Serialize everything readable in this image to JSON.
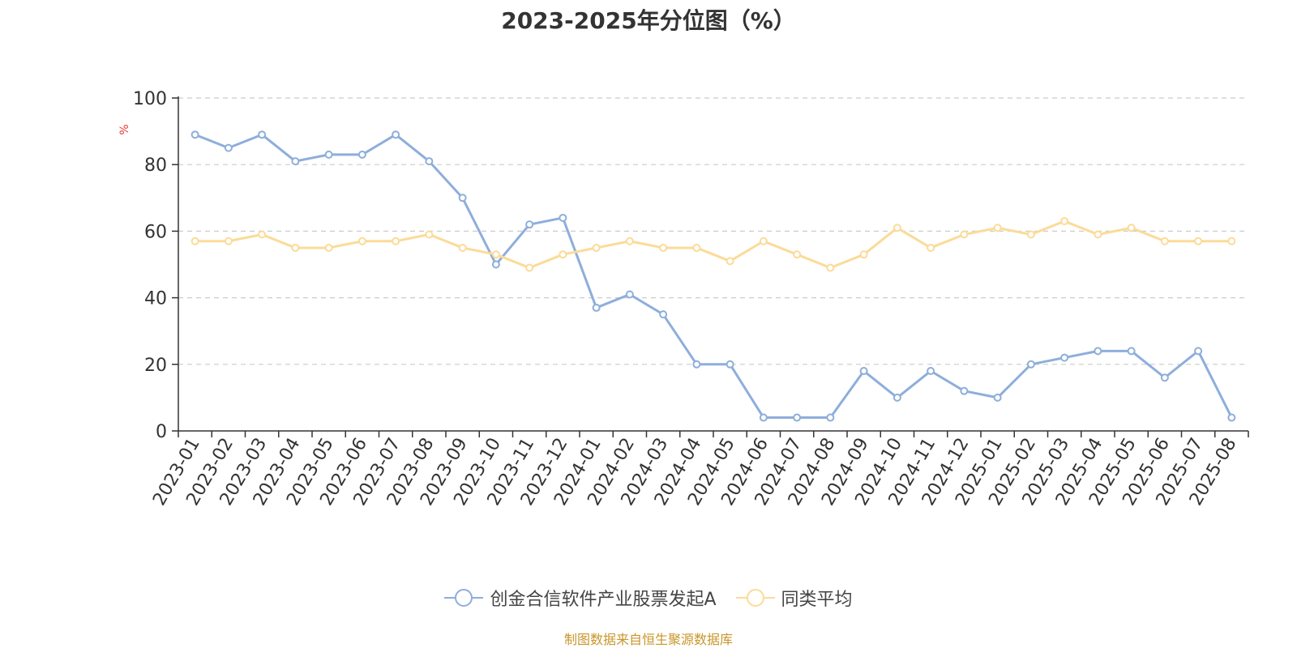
{
  "chart_data": {
    "type": "line",
    "title": "2023-2025年分位图（%）",
    "ylabel": "%",
    "xlabel": "",
    "ylim": [
      0,
      100
    ],
    "yticks": [
      0,
      20,
      40,
      60,
      80,
      100
    ],
    "grid": true,
    "legend_position": "bottom",
    "categories": [
      "2023-01",
      "2023-02",
      "2023-03",
      "2023-04",
      "2023-05",
      "2023-06",
      "2023-07",
      "2023-08",
      "2023-09",
      "2023-10",
      "2023-11",
      "2023-12",
      "2024-01",
      "2024-02",
      "2024-03",
      "2024-04",
      "2024-05",
      "2024-06",
      "2024-07",
      "2024-08",
      "2024-09",
      "2024-10",
      "2024-11",
      "2024-12",
      "2025-01",
      "2025-02",
      "2025-03",
      "2025-04",
      "2025-05",
      "2025-06",
      "2025-07",
      "2025-08"
    ],
    "series": [
      {
        "name": "创金合信软件产业股票发起A",
        "color": "#8eaedb",
        "values": [
          89,
          85,
          89,
          81,
          83,
          83,
          89,
          81,
          70,
          50,
          62,
          64,
          37,
          41,
          35,
          20,
          20,
          4,
          4,
          4,
          18,
          10,
          18,
          12,
          10,
          20,
          22,
          24,
          24,
          16,
          24,
          4
        ]
      },
      {
        "name": "同类平均",
        "color": "#fbdb98",
        "values": [
          57,
          57,
          59,
          55,
          55,
          57,
          57,
          59,
          55,
          53,
          49,
          53,
          55,
          57,
          55,
          55,
          51,
          57,
          53,
          49,
          53,
          61,
          55,
          59,
          61,
          59,
          63,
          59,
          61,
          57,
          57,
          57
        ]
      }
    ]
  },
  "source_note": "制图数据来自恒生聚源数据库"
}
